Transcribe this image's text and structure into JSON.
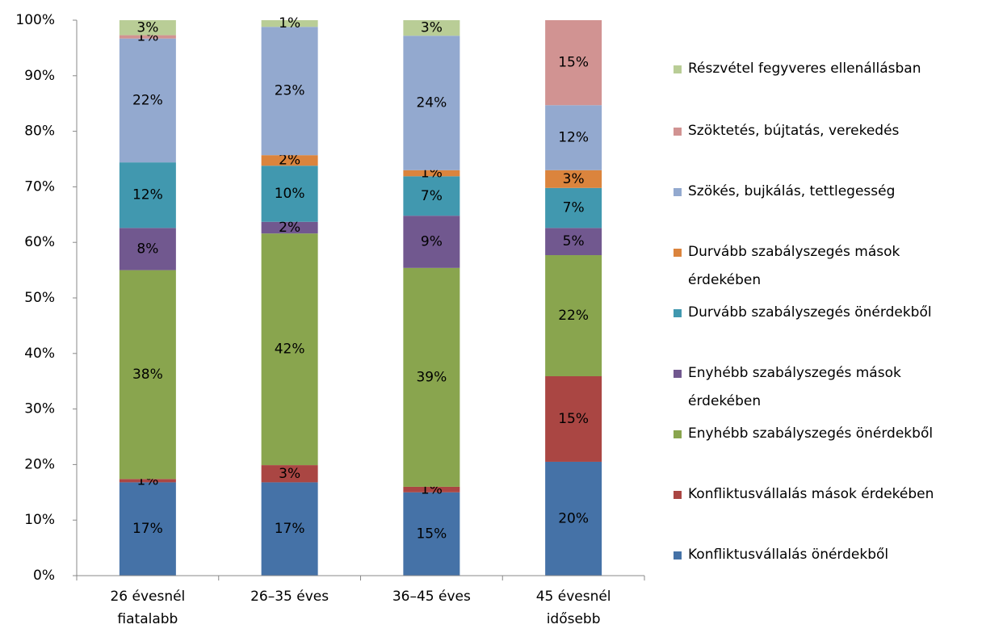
{
  "chart_data": {
    "type": "stacked_bar",
    "categories": [
      "26 évesnél fiatalabb",
      "26–35 éves",
      "36–45 éves",
      "45 évesnél idősebb"
    ],
    "series": [
      {
        "name": "Konfliktusvállalás önérdekből",
        "color": "#4572a7",
        "values": [
          16.8,
          16.8,
          15.0,
          20.5
        ],
        "value_labels": [
          "17%",
          "17%",
          "15%",
          "20%"
        ]
      },
      {
        "name": "Konfliktusvállalás mások érdekében",
        "color": "#aa4643",
        "values": [
          0.6,
          3.1,
          1.0,
          15.4
        ],
        "value_labels": [
          "1%",
          "3%",
          "1%",
          "15%"
        ]
      },
      {
        "name": "Enyhébb szabályszegés önérdekből",
        "color": "#89a54e",
        "values": [
          37.6,
          41.7,
          39.4,
          21.8
        ],
        "value_labels": [
          "38%",
          "42%",
          "39%",
          "22%"
        ]
      },
      {
        "name": "Enyhébb szabályszegés mások érdekében",
        "color": "#71588f",
        "values": [
          7.6,
          2.1,
          9.4,
          4.9
        ],
        "value_labels": [
          "8%",
          "2%",
          "9%",
          "5%"
        ]
      },
      {
        "name": "Durvább szabályszegés önérdekből",
        "color": "#4198af",
        "values": [
          11.8,
          10.1,
          7.1,
          7.2
        ],
        "value_labels": [
          "12%",
          "10%",
          "7%",
          "7%"
        ]
      },
      {
        "name": "Durvább szabályszegés mások érdekében",
        "color": "#db843d",
        "values": [
          0,
          1.9,
          1.1,
          3.2
        ],
        "value_labels": [
          null,
          "2%",
          "1%",
          "3%"
        ]
      },
      {
        "name": "Szökés, bujkálás, tettlegesség",
        "color": "#93a9cf",
        "values": [
          22.3,
          23.1,
          24.2,
          11.7
        ],
        "value_labels": [
          "22%",
          "23%",
          "24%",
          "12%"
        ]
      },
      {
        "name": "Szöktetés, bújtatás, verekedés",
        "color": "#d19392",
        "values": [
          0.6,
          0,
          0,
          15.3
        ],
        "value_labels": [
          "1%",
          null,
          null,
          "15%"
        ]
      },
      {
        "name": "Részvétel fegyveres ellenállásban",
        "color": "#b9cd96",
        "values": [
          2.7,
          1.2,
          2.8,
          0
        ],
        "value_labels": [
          "3%",
          "1%",
          "3%",
          null
        ]
      }
    ],
    "ylim": [
      0,
      100
    ],
    "yticks": [
      {
        "value": 0,
        "label": "0%"
      },
      {
        "value": 10,
        "label": "10%"
      },
      {
        "value": 20,
        "label": "20%"
      },
      {
        "value": 30,
        "label": "30%"
      },
      {
        "value": 40,
        "label": "40%"
      },
      {
        "value": 50,
        "label": "50%"
      },
      {
        "value": 60,
        "label": "60%"
      },
      {
        "value": 70,
        "label": "70%"
      },
      {
        "value": 80,
        "label": "80%"
      },
      {
        "value": 90,
        "label": "90%"
      },
      {
        "value": 100,
        "label": "100%"
      }
    ],
    "grid": false,
    "legend": "right"
  }
}
